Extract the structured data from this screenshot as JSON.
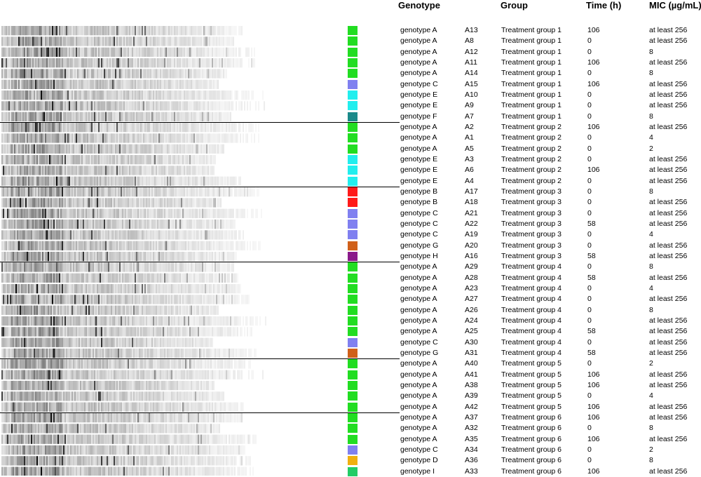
{
  "headers": {
    "genotype": "Genotype",
    "group": "Group",
    "time": "Time (h)",
    "mic": "MIC (µg/mL)"
  },
  "colors": {
    "genotype A": "#22dd22",
    "genotype B": "#ff1a1a",
    "genotype C": "#8080f0",
    "genotype D": "#f0b010",
    "genotype E": "#22eeee",
    "genotype F": "#1a8a8a",
    "genotype G": "#d0601a",
    "genotype H": "#8a1a8a",
    "genotype I": "#22cc66"
  },
  "rows": [
    {
      "genotype": "genotype A",
      "isolate": "A13",
      "group": "Treatment group 1",
      "time": "106",
      "mic": "at least 256"
    },
    {
      "genotype": "genotype A",
      "isolate": "A8",
      "group": "Treatment group 1",
      "time": "0",
      "mic": "at least 256"
    },
    {
      "genotype": "genotype A",
      "isolate": "A12",
      "group": "Treatment group 1",
      "time": "0",
      "mic": "8"
    },
    {
      "genotype": "genotype A",
      "isolate": "A11",
      "group": "Treatment group 1",
      "time": "106",
      "mic": "at least 256"
    },
    {
      "genotype": "genotype A",
      "isolate": "A14",
      "group": "Treatment group 1",
      "time": "0",
      "mic": "8"
    },
    {
      "genotype": "genotype C",
      "isolate": "A15",
      "group": "Treatment group 1",
      "time": "106",
      "mic": "at least 256"
    },
    {
      "genotype": "genotype E",
      "isolate": "A10",
      "group": "Treatment group 1",
      "time": "0",
      "mic": "at least 256"
    },
    {
      "genotype": "genotype E",
      "isolate": "A9",
      "group": "Treatment group 1",
      "time": "0",
      "mic": "at least 256"
    },
    {
      "genotype": "genotype F",
      "isolate": "A7",
      "group": "Treatment group 1",
      "time": "0",
      "mic": "8"
    },
    {
      "genotype": "genotype A",
      "isolate": "A2",
      "group": "Treatment group 2",
      "time": "106",
      "mic": "at least 256"
    },
    {
      "genotype": "genotype A",
      "isolate": "A1",
      "group": "Treatment group 2",
      "time": "0",
      "mic": "4"
    },
    {
      "genotype": "genotype A",
      "isolate": "A5",
      "group": "Treatment group 2",
      "time": "0",
      "mic": "2"
    },
    {
      "genotype": "genotype E",
      "isolate": "A3",
      "group": "Treatment group 2",
      "time": "0",
      "mic": "at least 256"
    },
    {
      "genotype": "genotype E",
      "isolate": "A6",
      "group": "Treatment group 2",
      "time": "106",
      "mic": "at least 256"
    },
    {
      "genotype": "genotype E",
      "isolate": "A4",
      "group": "Treatment group 2",
      "time": "0",
      "mic": "at least 256"
    },
    {
      "genotype": "genotype B",
      "isolate": "A17",
      "group": "Treatment group 3",
      "time": "0",
      "mic": "8"
    },
    {
      "genotype": "genotype B",
      "isolate": "A18",
      "group": "Treatment group 3",
      "time": "0",
      "mic": "at least 256"
    },
    {
      "genotype": "genotype C",
      "isolate": "A21",
      "group": "Treatment group 3",
      "time": "0",
      "mic": "at least 256"
    },
    {
      "genotype": "genotype C",
      "isolate": "A22",
      "group": "Treatment group 3",
      "time": "58",
      "mic": "at least 256"
    },
    {
      "genotype": "genotype C",
      "isolate": "A19",
      "group": "Treatment group 3",
      "time": "0",
      "mic": "4"
    },
    {
      "genotype": "genotype G",
      "isolate": "A20",
      "group": "Treatment group 3",
      "time": "0",
      "mic": "at least 256"
    },
    {
      "genotype": "genotype H",
      "isolate": "A16",
      "group": "Treatment group 3",
      "time": "58",
      "mic": "at least 256"
    },
    {
      "genotype": "genotype A",
      "isolate": "A29",
      "group": "Treatment group 4",
      "time": "0",
      "mic": "8"
    },
    {
      "genotype": "genotype A",
      "isolate": "A28",
      "group": "Treatment group 4",
      "time": "58",
      "mic": "at least 256"
    },
    {
      "genotype": "genotype A",
      "isolate": "A23",
      "group": "Treatment group 4",
      "time": "0",
      "mic": "4"
    },
    {
      "genotype": "genotype A",
      "isolate": "A27",
      "group": "Treatment group 4",
      "time": "0",
      "mic": "at least 256"
    },
    {
      "genotype": "genotype A",
      "isolate": "A26",
      "group": "Treatment group 4",
      "time": "0",
      "mic": "8"
    },
    {
      "genotype": "genotype A",
      "isolate": "A24",
      "group": "Treatment group 4",
      "time": "0",
      "mic": "at least 256"
    },
    {
      "genotype": "genotype A",
      "isolate": "A25",
      "group": "Treatment group 4",
      "time": "58",
      "mic": "at least 256"
    },
    {
      "genotype": "genotype C",
      "isolate": "A30",
      "group": "Treatment group 4",
      "time": "0",
      "mic": "at least 256"
    },
    {
      "genotype": "genotype G",
      "isolate": "A31",
      "group": "Treatment group 4",
      "time": "58",
      "mic": "at least 256"
    },
    {
      "genotype": "genotype A",
      "isolate": "A40",
      "group": "Treatment group 5",
      "time": "0",
      "mic": "2"
    },
    {
      "genotype": "genotype A",
      "isolate": "A41",
      "group": "Treatment group 5",
      "time": "106",
      "mic": "at least 256"
    },
    {
      "genotype": "genotype A",
      "isolate": "A38",
      "group": "Treatment group 5",
      "time": "106",
      "mic": "at least 256"
    },
    {
      "genotype": "genotype A",
      "isolate": "A39",
      "group": "Treatment group 5",
      "time": "0",
      "mic": "4"
    },
    {
      "genotype": "genotype A",
      "isolate": "A42",
      "group": "Treatment group 5",
      "time": "106",
      "mic": "at least 256"
    },
    {
      "genotype": "genotype A",
      "isolate": "A37",
      "group": "Treatment group 6",
      "time": "106",
      "mic": "at least 256"
    },
    {
      "genotype": "genotype A",
      "isolate": "A32",
      "group": "Treatment group 6",
      "time": "0",
      "mic": "8"
    },
    {
      "genotype": "genotype A",
      "isolate": "A35",
      "group": "Treatment group 6",
      "time": "106",
      "mic": "at least 256"
    },
    {
      "genotype": "genotype C",
      "isolate": "A34",
      "group": "Treatment group 6",
      "time": "0",
      "mic": "2"
    },
    {
      "genotype": "genotype D",
      "isolate": "A36",
      "group": "Treatment group 6",
      "time": "0",
      "mic": "8"
    },
    {
      "genotype": "genotype I",
      "isolate": "A33",
      "group": "Treatment group 6",
      "time": "106",
      "mic": "at least 256"
    }
  ]
}
